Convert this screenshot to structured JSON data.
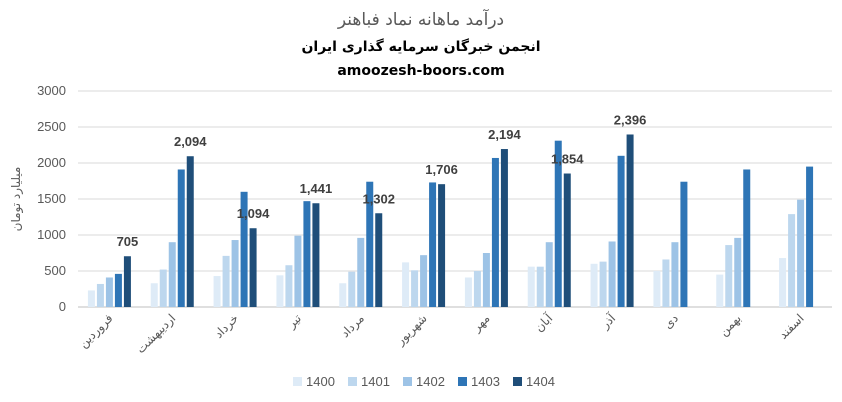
{
  "chart_data": {
    "type": "bar",
    "title": "درآمد ماهانه نماد فباهنر",
    "subtitle": "انجمن خبرگان سرمایه گذاری ایران",
    "site": "amoozesh-boors.com",
    "ylabel": "میلیارد تومان",
    "xlabel": "",
    "ylim": [
      0,
      3000
    ],
    "yticks": [
      0,
      500,
      1000,
      1500,
      2000,
      2500,
      3000
    ],
    "grid": true,
    "legend_position": "bottom",
    "categories": [
      "فروردین",
      "اردیبهشت",
      "خرداد",
      "تیر",
      "مرداد",
      "شهریور",
      "مهر",
      "آبان",
      "آذر",
      "دی",
      "بهمن",
      "اسفند"
    ],
    "series": [
      {
        "name": "1400",
        "color": "#DEEBF7",
        "values": [
          230,
          330,
          430,
          440,
          330,
          620,
          410,
          560,
          600,
          500,
          450,
          680
        ]
      },
      {
        "name": "1401",
        "color": "#BDD7EE",
        "values": [
          320,
          520,
          710,
          580,
          490,
          510,
          500,
          560,
          630,
          660,
          860,
          1290
        ]
      },
      {
        "name": "1402",
        "color": "#9DC3E6",
        "values": [
          410,
          900,
          930,
          990,
          960,
          720,
          750,
          900,
          910,
          900,
          960,
          1490
        ]
      },
      {
        "name": "1403",
        "color": "#2E75B6",
        "values": [
          460,
          1910,
          1600,
          1470,
          1740,
          1730,
          2070,
          2310,
          2100,
          1740,
          1910,
          1950
        ]
      },
      {
        "name": "1404",
        "color": "#1F4E79",
        "values": [
          705,
          2094,
          1094,
          1441,
          1302,
          1706,
          2194,
          1854,
          2396,
          null,
          null,
          null
        ]
      }
    ],
    "data_labels": [
      "705",
      "2,094",
      "1,094",
      "1,441",
      "1,302",
      "1,706",
      "2,194",
      "1,854",
      "2,396"
    ]
  }
}
